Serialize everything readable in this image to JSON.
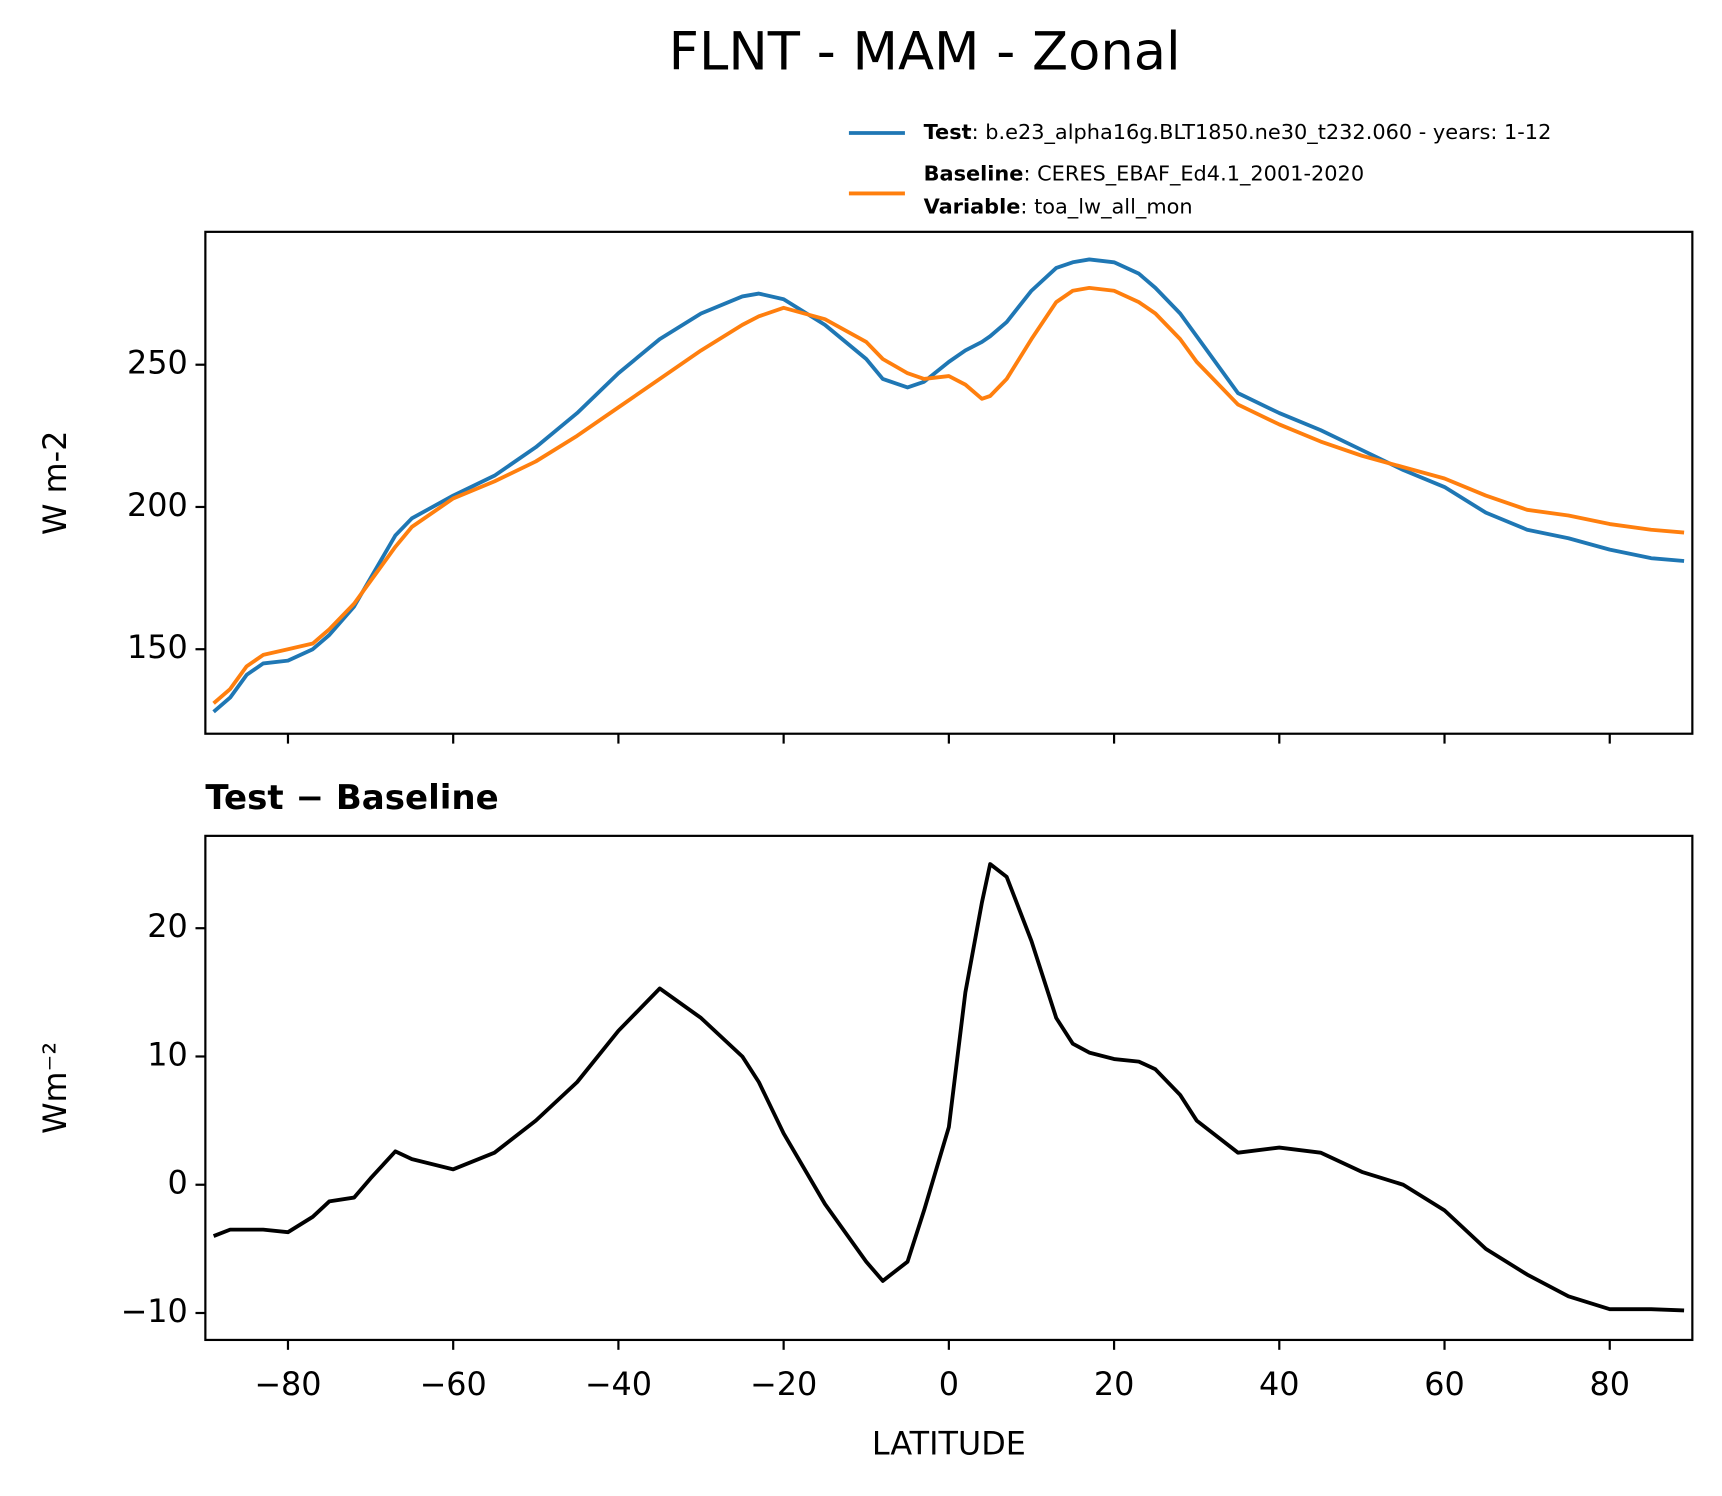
{
  "title": "FLNT - MAM - Zonal",
  "chart_data": [
    {
      "type": "line",
      "x": [
        -89,
        -87,
        -85,
        -83,
        -80,
        -77,
        -75,
        -72,
        -70,
        -67,
        -65,
        -60,
        -55,
        -50,
        -45,
        -40,
        -35,
        -30,
        -25,
        -23,
        -20,
        -15,
        -10,
        -8,
        -5,
        -3,
        0,
        2,
        4,
        5,
        7,
        10,
        13,
        15,
        17,
        20,
        23,
        25,
        28,
        30,
        35,
        40,
        45,
        50,
        55,
        60,
        65,
        70,
        75,
        80,
        85,
        89
      ],
      "series": [
        {
          "name": "Test",
          "description": ": b.e23_alpha16g.BLT1850.ne30_t232.060 - years: 1-12",
          "color": "#1f77b4",
          "values": [
            128,
            133,
            141,
            145,
            146,
            150,
            155,
            165,
            175,
            190,
            196,
            204,
            211,
            221,
            233,
            247,
            259,
            268,
            274,
            275,
            273,
            264,
            252,
            245,
            242,
            244,
            251,
            255,
            258,
            260,
            265,
            276,
            284,
            286,
            287,
            286,
            282,
            277,
            268,
            260,
            240,
            233,
            227,
            220,
            213,
            207,
            198,
            192,
            189,
            185,
            182,
            181
          ]
        },
        {
          "name": "Baseline",
          "description": ": CERES_EBAF_Ed4.1_2001-2020",
          "extra_name": "Variable",
          "extra_description": ": toa_lw_all_mon",
          "color": "#ff7f0e",
          "values": [
            131,
            136,
            144,
            148,
            150,
            152,
            157,
            166,
            174,
            186,
            193,
            203,
            209,
            216,
            225,
            235,
            245,
            255,
            264,
            267,
            270,
            266,
            258,
            252,
            247,
            245,
            246,
            243,
            238,
            239,
            245,
            259,
            272,
            276,
            277,
            276,
            272,
            268,
            259,
            251,
            236,
            229,
            223,
            218,
            214,
            210,
            204,
            199,
            197,
            194,
            192,
            191
          ]
        }
      ],
      "ylabel": "W m-2",
      "xlim": [
        -90,
        90
      ],
      "xticks": [
        -80,
        -60,
        -40,
        -20,
        0,
        20,
        40,
        60,
        80
      ],
      "ylim": [
        120.3,
        296.7
      ],
      "yticks": [
        150,
        200,
        250
      ]
    },
    {
      "type": "line",
      "title": "Test − Baseline",
      "x": [
        -89,
        -87,
        -85,
        -83,
        -80,
        -77,
        -75,
        -72,
        -70,
        -67,
        -65,
        -60,
        -55,
        -50,
        -45,
        -40,
        -35,
        -30,
        -25,
        -23,
        -20,
        -15,
        -10,
        -8,
        -5,
        -3,
        0,
        2,
        4,
        5,
        7,
        10,
        13,
        15,
        17,
        20,
        23,
        25,
        28,
        30,
        35,
        40,
        45,
        50,
        55,
        60,
        65,
        70,
        75,
        80,
        85,
        89
      ],
      "series": [
        {
          "color": "#000000",
          "values": [
            -4,
            -3.5,
            -3.5,
            -3.5,
            -3.7,
            -2.5,
            -1.3,
            -1,
            0.5,
            2.6,
            2,
            1.2,
            2.5,
            5,
            8,
            12,
            15.3,
            13,
            10,
            8,
            4,
            -1.5,
            -6,
            -7.5,
            -6,
            -2,
            4.5,
            15,
            22,
            25,
            24,
            19,
            13,
            11,
            10.3,
            9.8,
            9.6,
            9,
            7,
            5,
            2.5,
            2.9,
            2.5,
            1,
            0,
            -2,
            -5,
            -7,
            -8.7,
            -9.7,
            -9.7,
            -9.8
          ]
        }
      ],
      "xlabel": "LATITUDE",
      "ylabel": "Wm⁻²",
      "xlim": [
        -90,
        90
      ],
      "xticks": [
        {
          "value": -80,
          "label": "−80"
        },
        {
          "value": -60,
          "label": "−60"
        },
        {
          "value": -40,
          "label": "−40"
        },
        {
          "value": -20,
          "label": "−20"
        },
        0,
        20,
        40,
        60,
        80
      ],
      "ylim": [
        -12.1,
        27.2
      ],
      "yticks": [
        {
          "value": -10,
          "label": "−10"
        },
        0,
        10,
        20
      ]
    }
  ]
}
